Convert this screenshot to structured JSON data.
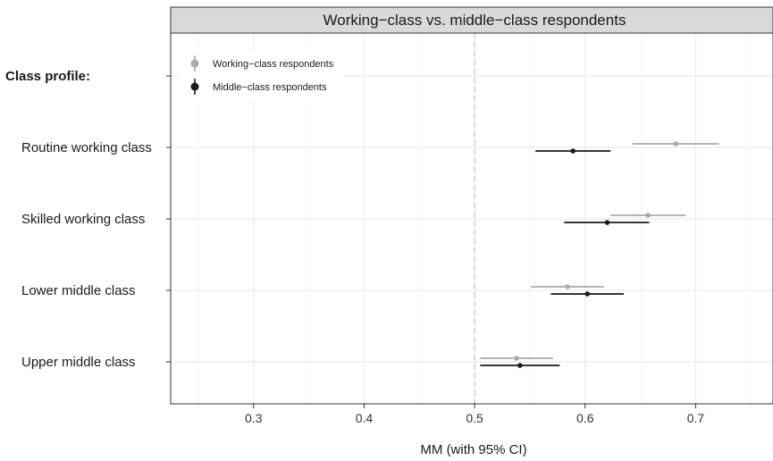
{
  "chart_data": {
    "type": "scatter",
    "title": "Working−class vs. middle−class respondents",
    "xlabel": "MM (with 95% CI)",
    "xlim": [
      0.225,
      0.77
    ],
    "xticks": [
      0.3,
      0.4,
      0.5,
      0.6,
      0.7
    ],
    "xtick_labels": [
      "0.3",
      "0.4",
      "0.5",
      "0.6",
      "0.7"
    ],
    "reference_line": 0.5,
    "grid": true,
    "legend_position": "top-left",
    "categories": [
      "Class profile:",
      "Routine working class",
      "Skilled working class",
      "Lower middle class",
      "Upper middle class"
    ],
    "series": [
      {
        "name": "Working−class respondents",
        "color": "#aaaaaa",
        "points": [
          {
            "category": "Routine working class",
            "estimate": 0.682,
            "lower": 0.643,
            "upper": 0.721
          },
          {
            "category": "Skilled working class",
            "estimate": 0.657,
            "lower": 0.623,
            "upper": 0.691
          },
          {
            "category": "Lower middle class",
            "estimate": 0.584,
            "lower": 0.551,
            "upper": 0.617
          },
          {
            "category": "Upper middle class",
            "estimate": 0.538,
            "lower": 0.505,
            "upper": 0.571
          }
        ]
      },
      {
        "name": "Middle−class respondents",
        "color": "#1a1a1a",
        "points": [
          {
            "category": "Routine working class",
            "estimate": 0.589,
            "lower": 0.555,
            "upper": 0.623
          },
          {
            "category": "Skilled working class",
            "estimate": 0.62,
            "lower": 0.581,
            "upper": 0.658
          },
          {
            "category": "Lower middle class",
            "estimate": 0.602,
            "lower": 0.569,
            "upper": 0.635
          },
          {
            "category": "Upper middle class",
            "estimate": 0.541,
            "lower": 0.505,
            "upper": 0.577
          }
        ]
      }
    ]
  }
}
